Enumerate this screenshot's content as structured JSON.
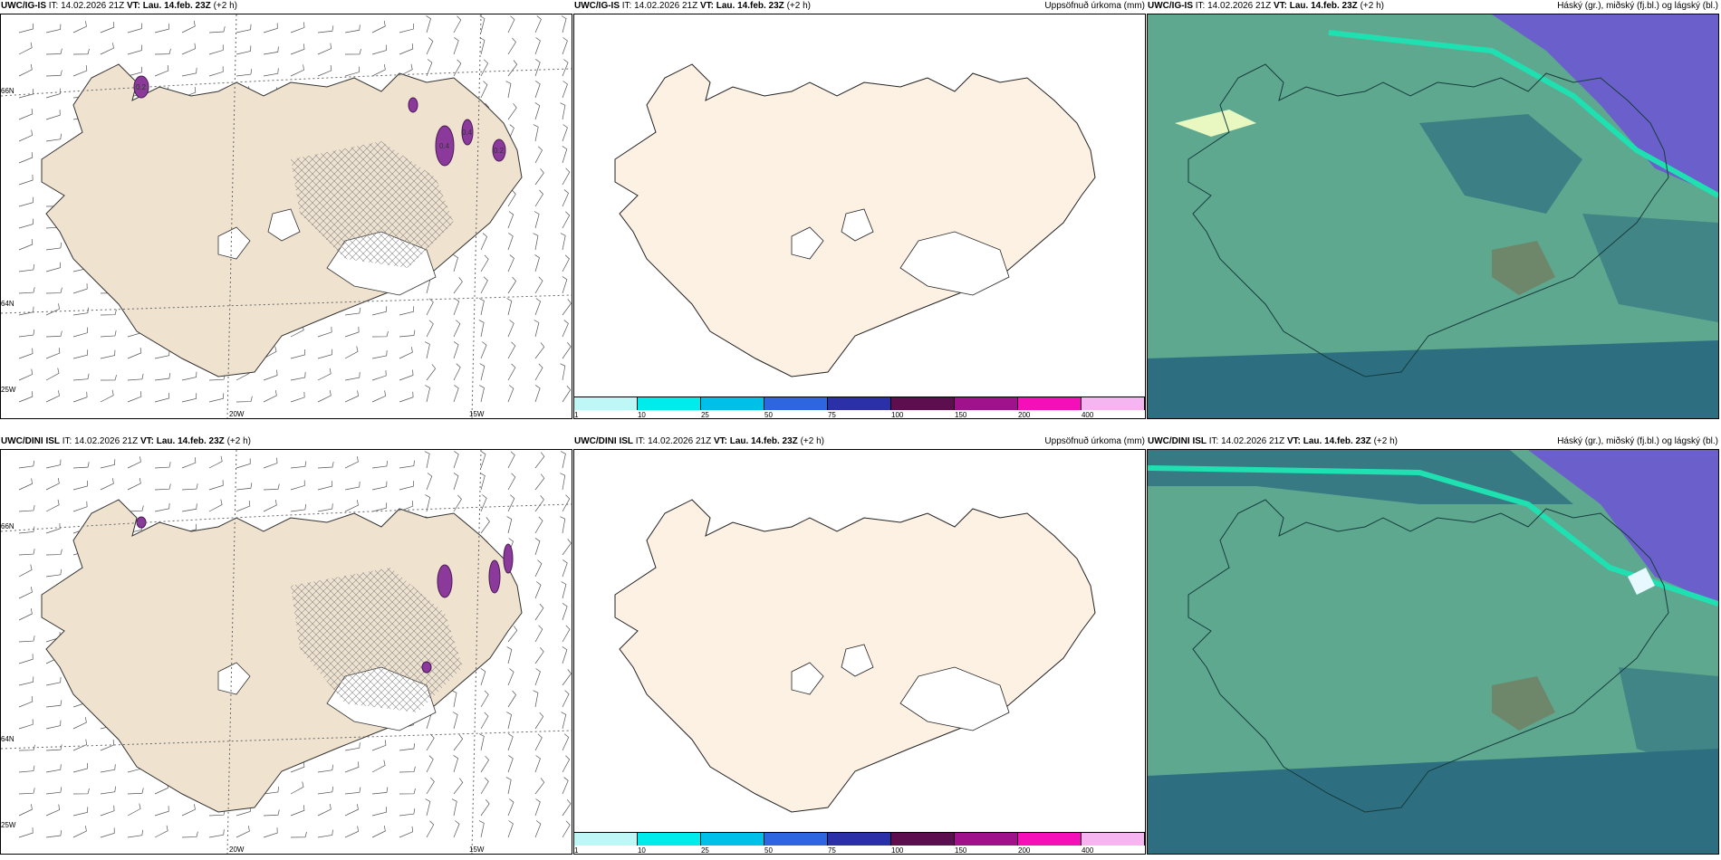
{
  "panels": [
    {
      "model": "UWC/IG-IS",
      "it_label": "IT:",
      "it_value": "14.02.2026 21Z",
      "vt_label": "VT:",
      "vt_value": "Lau. 14.feb. 23Z",
      "lead": "(+2 h)",
      "right_title": "",
      "kind": "wind"
    },
    {
      "model": "UWC/IG-IS",
      "it_label": "IT:",
      "it_value": "14.02.2026 21Z",
      "vt_label": "VT:",
      "vt_value": "Lau. 14.feb. 23Z",
      "lead": "(+2 h)",
      "right_title": "Uppsöfnuð úrkoma (mm)",
      "kind": "precip"
    },
    {
      "model": "UWC/IG-IS",
      "it_label": "IT:",
      "it_value": "14.02.2026 21Z",
      "vt_label": "VT:",
      "vt_value": "Lau. 14.feb. 23Z",
      "lead": "(+2 h)",
      "right_title": "Háský (gr.), miðský (fj.bl.) og lágský (bl.)",
      "kind": "cloud"
    },
    {
      "model": "UWC/DINI ISL",
      "it_label": "IT:",
      "it_value": "14.02.2026 21Z",
      "vt_label": "VT:",
      "vt_value": "Lau. 14.feb. 23Z",
      "lead": "(+2 h)",
      "right_title": "",
      "kind": "wind"
    },
    {
      "model": "UWC/DINI ISL",
      "it_label": "IT:",
      "it_value": "14.02.2026 21Z",
      "vt_label": "VT:",
      "vt_value": "Lau. 14.feb. 23Z",
      "lead": "(+2 h)",
      "right_title": "Uppsöfnuð úrkoma (mm)",
      "kind": "precip"
    },
    {
      "model": "UWC/DINI ISL",
      "it_label": "IT:",
      "it_value": "14.02.2026 21Z",
      "vt_label": "VT:",
      "vt_value": "Lau. 14.feb. 23Z",
      "lead": "(+2 h)",
      "right_title": "Háský (gr.), miðský (fj.bl.) og lágský (bl.)",
      "kind": "cloud"
    }
  ],
  "grid_labels": {
    "lat_66": "66N",
    "lat_64": "64N",
    "lon_25": "25W",
    "lon_20": "20W",
    "lon_15": "15W"
  },
  "precip_labels": [
    "0.2",
    "0.4",
    "0.4",
    "0.2"
  ],
  "colorbar": {
    "ticks": [
      "1",
      "10",
      "25",
      "50",
      "75",
      "100",
      "150",
      "200",
      "400"
    ],
    "colors": [
      "#bff7f7",
      "#00ecec",
      "#00bfe8",
      "#2e66e0",
      "#2b2fa8",
      "#5c0e4f",
      "#a0128c",
      "#f50fb8",
      "#f5b5f0"
    ]
  },
  "colors": {
    "land": "#efe3cf",
    "land_light": "#fdf1e4",
    "cloud_base": "#5fa890",
    "cloud_deep": "#2d6e80",
    "cloud_high": "#6b5fcc",
    "jet": "#1fe0b0"
  }
}
